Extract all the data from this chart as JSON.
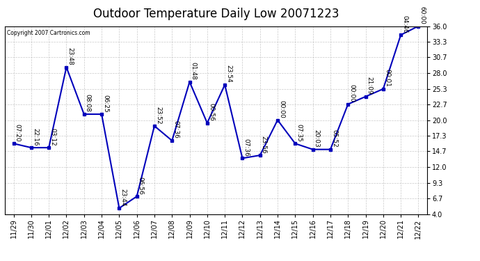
{
  "title": "Outdoor Temperature Daily Low 20071223",
  "copyright": "Copyright 2007 Cartronics.com",
  "x_labels": [
    "11/29",
    "11/30",
    "12/01",
    "12/02",
    "12/03",
    "12/04",
    "12/05",
    "12/06",
    "12/07",
    "12/08",
    "12/09",
    "12/10",
    "12/11",
    "12/12",
    "12/13",
    "12/14",
    "12/15",
    "12/16",
    "12/17",
    "12/18",
    "12/19",
    "12/20",
    "12/21",
    "12/22"
  ],
  "y_values": [
    16.0,
    15.3,
    15.3,
    29.0,
    21.0,
    21.0,
    5.0,
    7.0,
    19.0,
    16.5,
    26.5,
    19.5,
    26.0,
    13.5,
    14.0,
    20.0,
    16.0,
    15.0,
    15.0,
    22.7,
    24.0,
    25.3,
    34.5,
    36.0
  ],
  "point_labels": [
    "07:20",
    "22:16",
    "03:12",
    "23:48",
    "08:08",
    "06:25",
    "23:44",
    "06:56",
    "23:52",
    "07:36",
    "01:48",
    "00:56",
    "23:54",
    "07:36",
    "23:56",
    "00:00",
    "07:35",
    "20:03",
    "05:52",
    "00:00",
    "21:09",
    "00:01",
    "04:46",
    "60:00"
  ],
  "y_ticks": [
    4.0,
    6.7,
    9.3,
    12.0,
    14.7,
    17.3,
    20.0,
    22.7,
    25.3,
    28.0,
    30.7,
    33.3,
    36.0
  ],
  "ylim": [
    4.0,
    36.0
  ],
  "line_color": "#0000bb",
  "marker_color": "#0000bb",
  "bg_color": "#ffffff",
  "grid_color": "#bbbbbb",
  "title_fontsize": 12,
  "tick_fontsize": 7,
  "annotation_fontsize": 6.5
}
